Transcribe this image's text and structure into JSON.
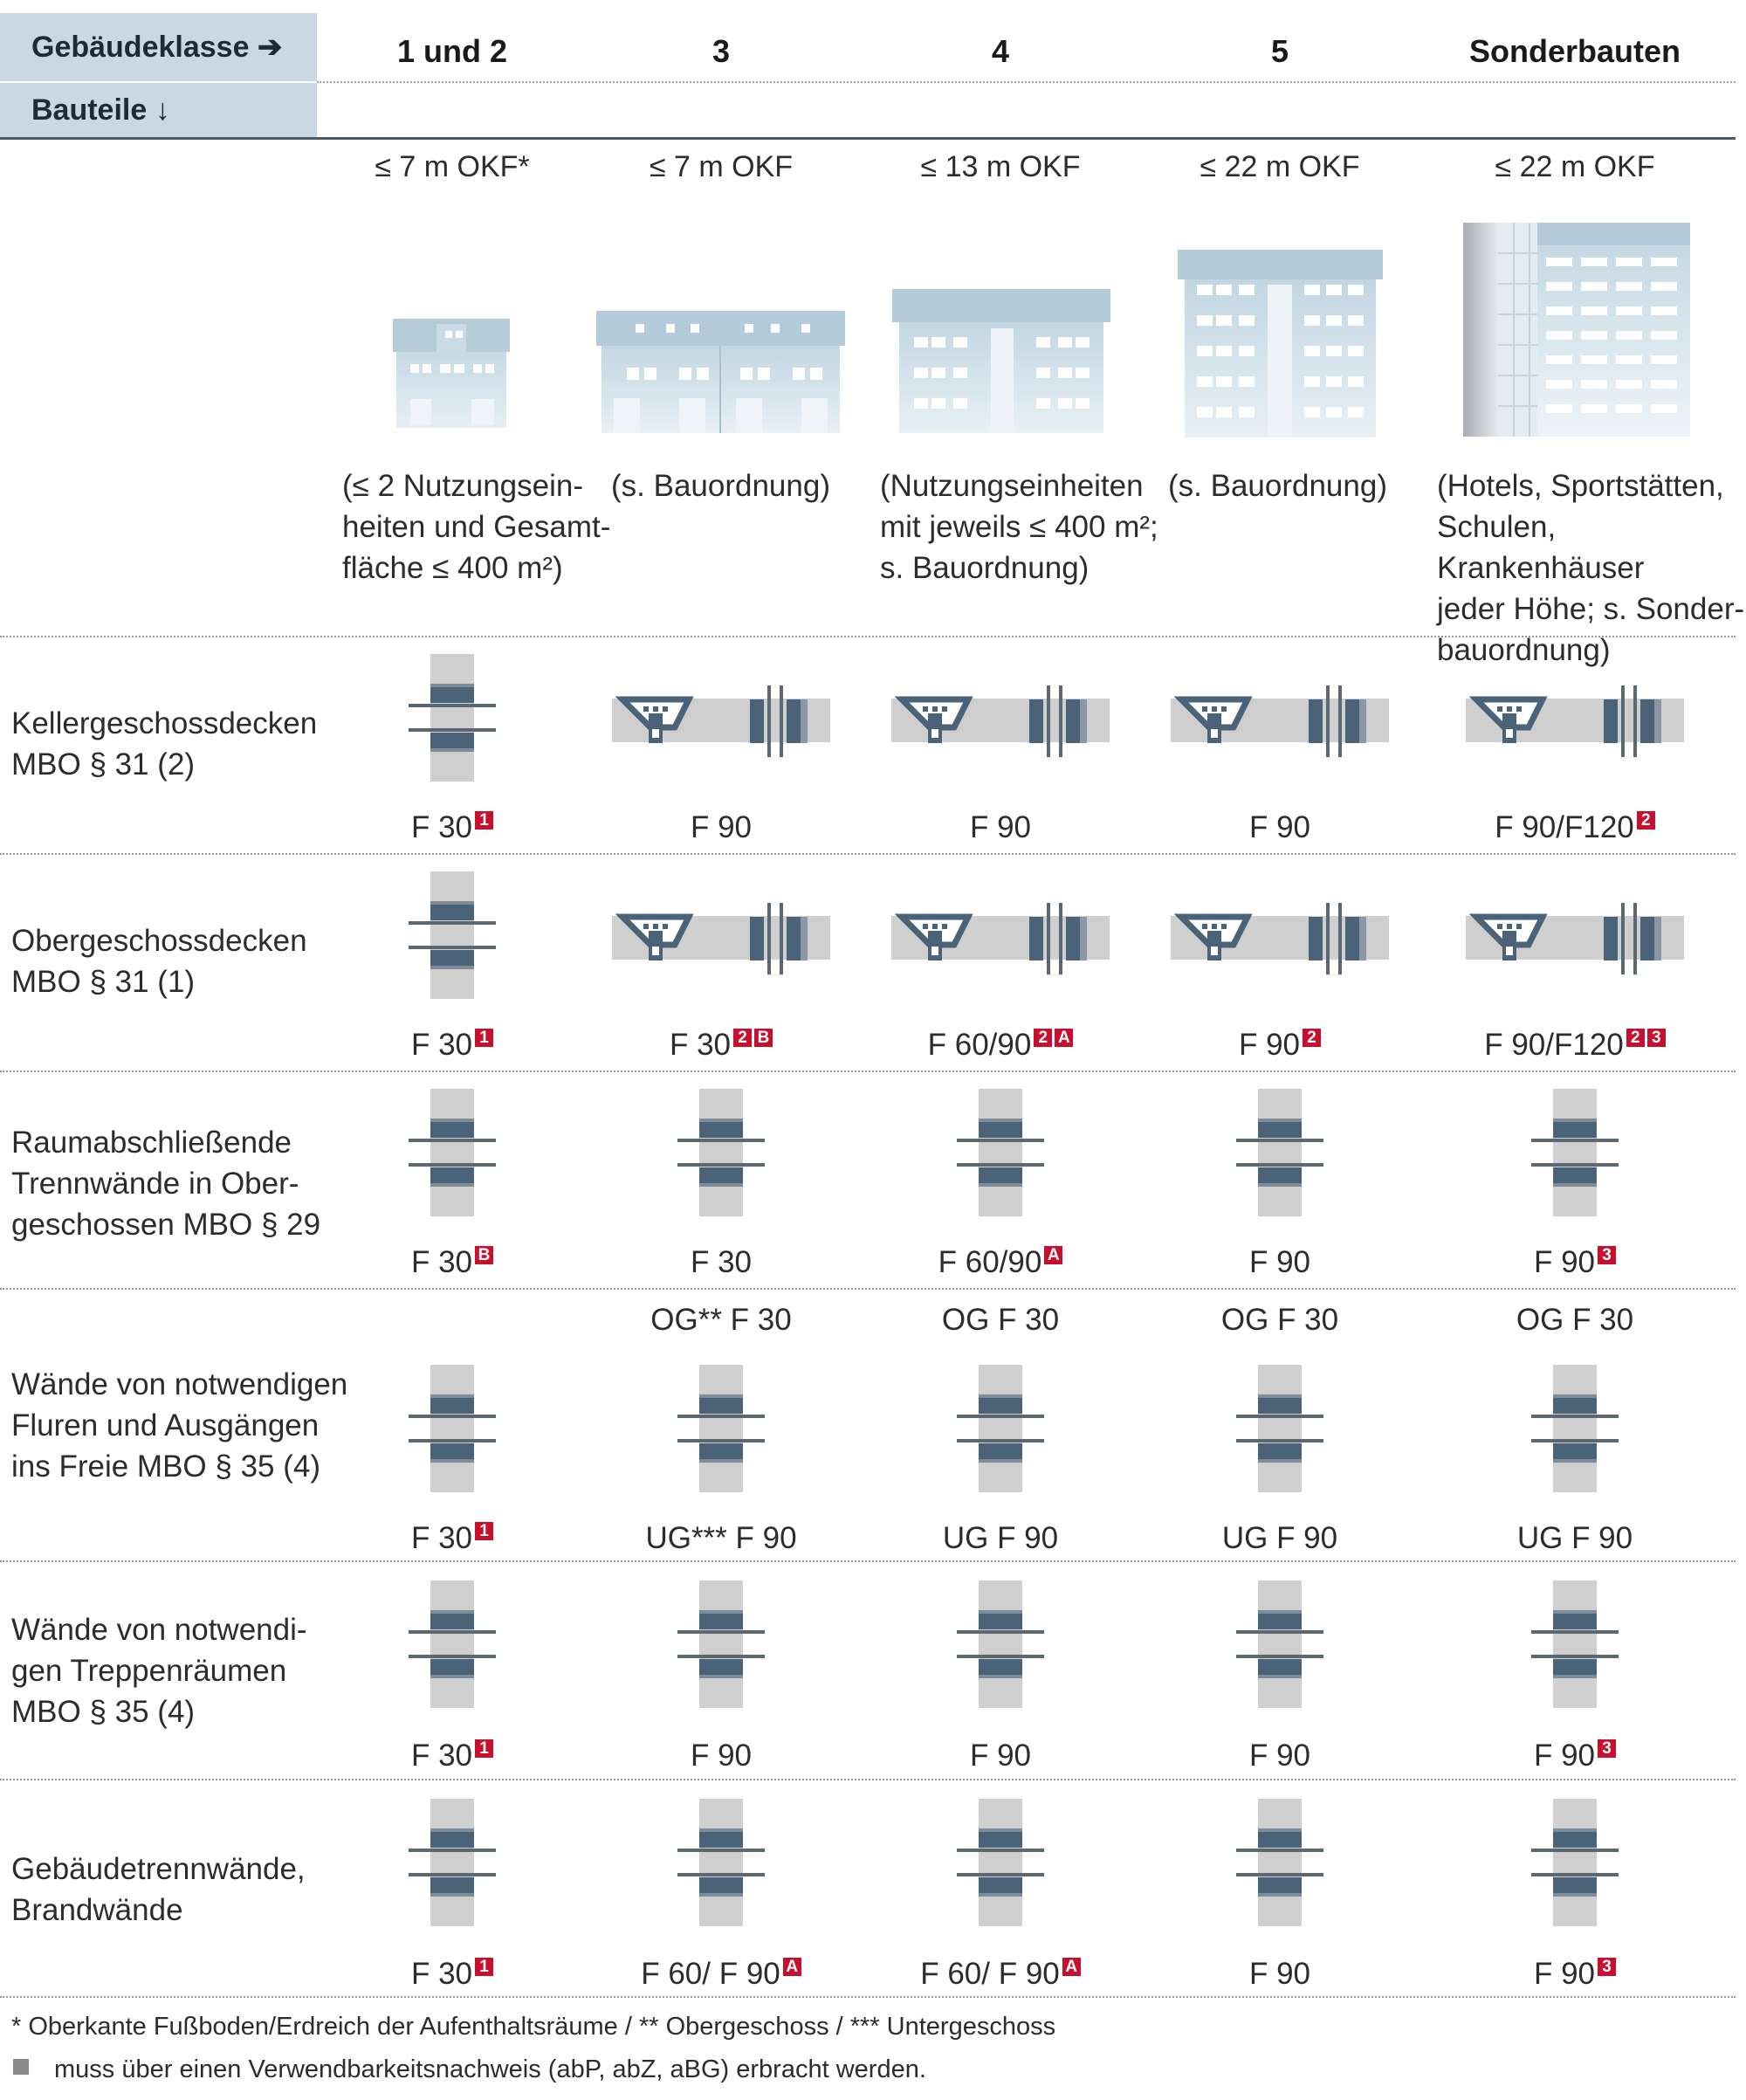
{
  "header": {
    "klasse_label": "Gebäudeklasse ➔",
    "bauteile_label": "Bauteile ↓",
    "columns": [
      {
        "class": "1 und 2",
        "height": "≤ 7 m OKF*",
        "desc": "(≤ 2 Nutzungsein-\nheiten und Gesamt-\nfläche ≤ 400 m²)"
      },
      {
        "class": "3",
        "height": "≤ 7 m OKF",
        "desc": "(s. Bauordnung)"
      },
      {
        "class": "4",
        "height": "≤ 13 m OKF",
        "desc": "(Nutzungseinheiten\nmit jeweils ≤ 400 m²;\ns. Bauordnung)"
      },
      {
        "class": "5",
        "height": "≤ 22 m OKF",
        "desc": "(s. Bauordnung)"
      },
      {
        "class": "Sonderbauten",
        "height": "≤ 22 m OKF",
        "desc": "(Hotels, Sportstätten,\nSchulen, Krankenhäuser\njeder Höhe; s. Sonder-\nbauordnung)"
      }
    ]
  },
  "rows": [
    {
      "label": "Kellergeschossdecken\nMBO § 31 (2)",
      "cells": [
        {
          "rating": "F 30",
          "badges": [
            "1"
          ],
          "symbol": "v"
        },
        {
          "rating": "F 90",
          "badges": [],
          "symbol": "h"
        },
        {
          "rating": "F 90",
          "badges": [],
          "symbol": "h"
        },
        {
          "rating": "F 90",
          "badges": [],
          "symbol": "h"
        },
        {
          "rating": "F 90/F120",
          "badges": [
            "2"
          ],
          "symbol": "h"
        }
      ]
    },
    {
      "label": "Obergeschossdecken\nMBO § 31 (1)",
      "cells": [
        {
          "rating": "F 30",
          "badges": [
            "1"
          ],
          "symbol": "v"
        },
        {
          "rating": "F 30",
          "badges": [
            "2",
            "B"
          ],
          "symbol": "h"
        },
        {
          "rating": "F 60/90",
          "badges": [
            "2",
            "A"
          ],
          "symbol": "h"
        },
        {
          "rating": "F 90",
          "badges": [
            "2"
          ],
          "symbol": "h"
        },
        {
          "rating": "F 90/F120",
          "badges": [
            "2",
            "3"
          ],
          "symbol": "h"
        }
      ]
    },
    {
      "label": "Raumabschließende\nTrennwände in Ober-\ngeschossen MBO § 29",
      "cells": [
        {
          "rating": "F 30",
          "badges": [
            "B"
          ],
          "symbol": "v"
        },
        {
          "rating": "F 30",
          "badges": [],
          "symbol": "v"
        },
        {
          "rating": "F 60/90",
          "badges": [
            "A"
          ],
          "symbol": "v"
        },
        {
          "rating": "F 90",
          "badges": [],
          "symbol": "v"
        },
        {
          "rating": "F 90",
          "badges": [
            "3"
          ],
          "symbol": "v"
        }
      ]
    },
    {
      "label": "Wände von notwendigen\nFluren und Ausgängen\nins Freie MBO § 35 (4)",
      "cells": [
        {
          "top": "",
          "rating": "F 30",
          "badges": [
            "1"
          ],
          "symbol": "v"
        },
        {
          "top": "OG** F 30",
          "rating": "UG*** F 90",
          "badges": [],
          "symbol": "v"
        },
        {
          "top": "OG F 30",
          "rating": "UG F 90",
          "badges": [],
          "symbol": "v"
        },
        {
          "top": "OG F 30",
          "rating": "UG F 90",
          "badges": [],
          "symbol": "v"
        },
        {
          "top": "OG F 30",
          "rating": "UG F 90",
          "badges": [],
          "symbol": "v"
        }
      ]
    },
    {
      "label": "Wände von notwendi-\ngen Treppenräumen\nMBO § 35 (4)",
      "cells": [
        {
          "rating": "F 30",
          "badges": [
            "1"
          ],
          "symbol": "v"
        },
        {
          "rating": "F 90",
          "badges": [],
          "symbol": "v"
        },
        {
          "rating": "F 90",
          "badges": [],
          "symbol": "v"
        },
        {
          "rating": "F 90",
          "badges": [],
          "symbol": "v"
        },
        {
          "rating": "F 90",
          "badges": [
            "3"
          ],
          "symbol": "v"
        }
      ]
    },
    {
      "label": "Gebäudetrennwände,\nBrandwände",
      "cells": [
        {
          "rating": "F 30",
          "badges": [
            "1"
          ],
          "symbol": "v"
        },
        {
          "rating": "F 60/ F 90",
          "badges": [
            "A"
          ],
          "symbol": "v"
        },
        {
          "rating": "F 60/ F 90",
          "badges": [
            "A"
          ],
          "symbol": "v"
        },
        {
          "rating": "F 90",
          "badges": [],
          "symbol": "v"
        },
        {
          "rating": "F 90",
          "badges": [
            "3"
          ],
          "symbol": "v"
        }
      ]
    }
  ],
  "footer": {
    "footnote": "* Oberkante Fußboden/Erdreich der Aufenthaltsräume  /  ** Obergeschoss  /  *** Untergeschoss",
    "legend": "muss über einen Verwendbarkeitsnachweis (abP, abZ, aBG) erbracht werden."
  },
  "colors": {
    "header_bg": "#c9d8e2",
    "badge_red": "#c8102e",
    "core_blue": "#4b6378",
    "wall_grey": "#cfcfcf",
    "building": "#cbdce6"
  }
}
